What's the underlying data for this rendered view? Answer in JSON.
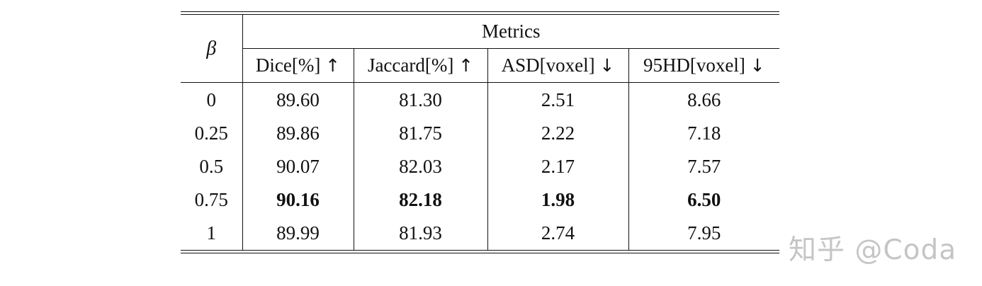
{
  "table": {
    "row_header": "β",
    "group_header": "Metrics",
    "columns": [
      {
        "label": "Dice[%] ",
        "arrow": "↑"
      },
      {
        "label": "Jaccard[%] ",
        "arrow": "↑"
      },
      {
        "label": "ASD[voxel] ",
        "arrow": "↓"
      },
      {
        "label": "95HD[voxel] ",
        "arrow": "↓"
      }
    ],
    "rows": [
      {
        "beta": "0",
        "values": [
          "89.60",
          "81.30",
          "2.51",
          "8.66"
        ],
        "bold": false
      },
      {
        "beta": "0.25",
        "values": [
          "89.86",
          "81.75",
          "2.22",
          "7.18"
        ],
        "bold": false
      },
      {
        "beta": "0.5",
        "values": [
          "90.07",
          "82.03",
          "2.17",
          "7.57"
        ],
        "bold": false
      },
      {
        "beta": "0.75",
        "values": [
          "90.16",
          "82.18",
          "1.98",
          "6.50"
        ],
        "bold": true
      },
      {
        "beta": "1",
        "values": [
          "89.99",
          "81.93",
          "2.74",
          "7.95"
        ],
        "bold": false
      }
    ]
  },
  "watermark": "知乎 @Coda"
}
